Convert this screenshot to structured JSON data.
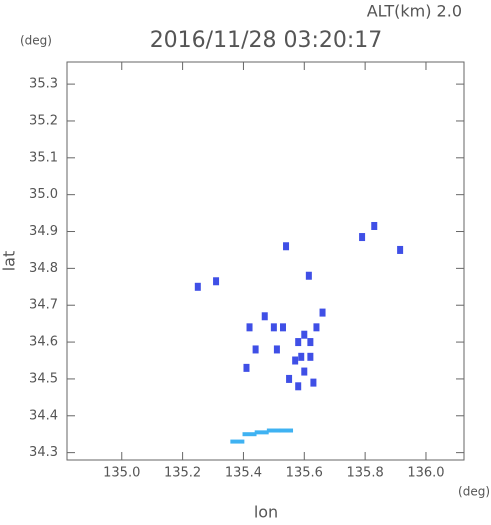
{
  "chart_data": {
    "type": "scatter",
    "title": "2016/11/28 03:20:17",
    "subtitle": "ALT(km) 2.0",
    "x_label": "lon",
    "y_label": "lat",
    "x_unit": "(deg)",
    "y_unit": "(deg)",
    "xlim": [
      134.82,
      136.125
    ],
    "ylim": [
      34.28,
      35.36
    ],
    "xticks": [
      {
        "value": 135,
        "label": "135.0"
      },
      135.2,
      135.4,
      135.6,
      135.8,
      {
        "value": 136,
        "label": "136.0"
      }
    ],
    "yticks": [
      34.3,
      34.4,
      34.5,
      34.6,
      34.7,
      34.8,
      34.9,
      {
        "value": 35,
        "label": "35.0"
      },
      35.1,
      35.2,
      35.3
    ],
    "series": [
      {
        "color": "#3f4fe6",
        "x": [
          135.25,
          135.31,
          135.615,
          135.79,
          135.915,
          135.83,
          135.54,
          135.42,
          135.47,
          135.5,
          135.53,
          135.6,
          135.64,
          135.66,
          135.58,
          135.57,
          135.59,
          135.55,
          135.6,
          135.58,
          135.63,
          135.62,
          135.41,
          135.44,
          135.51,
          135.62
        ],
        "y": [
          34.75,
          34.765,
          34.78,
          34.885,
          34.85,
          34.915,
          34.86,
          34.64,
          34.67,
          34.64,
          34.64,
          34.62,
          34.64,
          34.68,
          34.6,
          34.55,
          34.56,
          34.5,
          34.52,
          34.48,
          34.49,
          34.6,
          34.53,
          34.58,
          34.58,
          34.56
        ]
      },
      {
        "color": "#3fb2f2",
        "x": [
          135.38,
          135.42,
          135.46,
          135.5,
          135.54
        ],
        "y": [
          34.33,
          34.35,
          34.355,
          34.36,
          34.36
        ]
      }
    ]
  }
}
